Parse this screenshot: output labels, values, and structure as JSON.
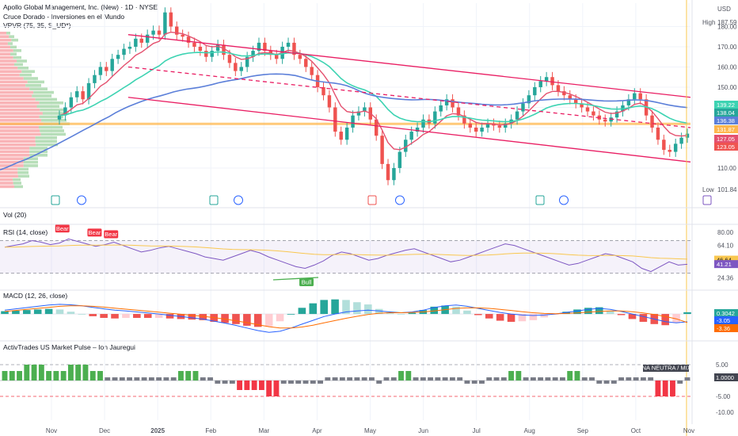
{
  "header": {
    "symbol_line": "Apollo Global Management, Inc. (New) · 1D · NYSE",
    "indicator_1": "Cruce Dorado - Inversiones en el Mundo",
    "indicator_2": "VPVR (75, 35, S_UD*)",
    "currency": "USD"
  },
  "colors": {
    "up": "#26a69a",
    "down": "#ef5350",
    "channel": "#e91e63",
    "ema_fast": "#e4516f",
    "ema_mid": "#3dd3b2",
    "ema_slow": "#5b7fd9",
    "support": "#ffb74d",
    "rsi": "#7e57c2",
    "macd": "#2962ff",
    "signal": "#ff6d00",
    "pulse_up": "#4caf50",
    "pulse_down": "#f23645",
    "pulse_neutral": "#787b86"
  },
  "chart_data": [
    {
      "type": "candlestick",
      "title": "Apollo Global Management, Inc. (New) · 1D · NYSE",
      "y_ticks": [
        110,
        120,
        130,
        140,
        150,
        160,
        170,
        180
      ],
      "ylim": [
        99,
        190
      ],
      "x_labels": [
        "Nov",
        "Dec",
        "2025",
        "Feb",
        "Mar",
        "Apr",
        "May",
        "Jun",
        "Jul",
        "Aug",
        "Sep",
        "Oct",
        "Nov"
      ],
      "high_label": "High",
      "high_value": "187.59",
      "low_label": "Low",
      "low_value": "101.84",
      "price_tags": [
        {
          "value": "139.22",
          "color": "#3dd3b2"
        },
        {
          "value": "138.04",
          "color": "#26a69a"
        },
        {
          "value": "136.38",
          "color": "#5b7fd9"
        },
        {
          "value": "131.87",
          "color": "#ffb74d"
        },
        {
          "value": "127.05",
          "color": "#e4516f"
        },
        {
          "value": "123.05",
          "color": "#ef5350"
        }
      ],
      "closes": [
        136,
        140,
        145,
        148,
        144,
        152,
        156,
        160,
        158,
        164,
        166,
        169,
        170,
        174,
        172,
        176,
        178,
        176,
        187,
        180,
        176,
        175,
        172,
        170,
        168,
        165,
        168,
        171,
        166,
        162,
        158,
        160,
        165,
        168,
        172,
        168,
        166,
        164,
        170,
        172,
        166,
        164,
        160,
        156,
        150,
        146,
        140,
        128,
        124,
        130,
        136,
        138,
        140,
        134,
        126,
        112,
        104,
        110,
        118,
        124,
        128,
        130,
        134,
        132,
        138,
        141,
        144,
        140,
        136,
        132,
        130,
        128,
        130,
        132,
        131,
        130,
        132,
        134,
        138,
        142,
        146,
        150,
        153,
        155,
        151,
        148,
        146,
        144,
        142,
        140,
        138,
        136,
        134,
        133,
        135,
        138,
        141,
        144,
        147,
        144,
        136,
        130,
        124,
        119,
        118,
        122,
        125,
        127
      ],
      "channel_upper": [
        [
          0.18,
          176
        ],
        [
          1.0,
          145
        ]
      ],
      "channel_mid": [
        [
          0.18,
          160
        ],
        [
          1.0,
          130
        ]
      ],
      "channel_lower": [
        [
          0.18,
          145
        ],
        [
          1.0,
          113
        ]
      ],
      "support_level": 131.87
    },
    {
      "type": "bar",
      "title": "Vol (20)"
    },
    {
      "type": "line",
      "title": "RSI (14, close)",
      "y_ticks": [
        80,
        64.1,
        46.64,
        41.21,
        24.36
      ],
      "tick_labels": [
        "80.00",
        "64.10",
        "46.64",
        "41.21",
        "24.36"
      ],
      "ylim": [
        20,
        85
      ],
      "band": [
        30,
        70
      ],
      "annotations": [
        {
          "label": "Bear",
          "x": 0.084,
          "value": 76
        },
        {
          "label": "Bear",
          "x": 0.131,
          "value": 71
        },
        {
          "label": "Bear",
          "x": 0.155,
          "value": 69
        },
        {
          "label": "Bull",
          "x": 0.44,
          "value": 27
        }
      ],
      "values": [
        62,
        64,
        66,
        70,
        68,
        65,
        67,
        72,
        69,
        66,
        63,
        65,
        68,
        64,
        60,
        56,
        58,
        61,
        63,
        60,
        57,
        54,
        50,
        48,
        46,
        50,
        54,
        58,
        55,
        50,
        46,
        42,
        38,
        36,
        40,
        45,
        52,
        56,
        54,
        50,
        46,
        48,
        52,
        55,
        58,
        60,
        56,
        52,
        48,
        44,
        46,
        50,
        54,
        58,
        62,
        66,
        64,
        60,
        56,
        52,
        48,
        44,
        40,
        42,
        46,
        50,
        54,
        52,
        48,
        44,
        36,
        32,
        38,
        44,
        40,
        41
      ]
    },
    {
      "type": "bar",
      "title": "MACD (12, 26, close)",
      "y_ticks": [
        0.3042,
        -3.05,
        -3.36
      ],
      "tick_labels": [
        "0.3042",
        "-3.05",
        "-3.36"
      ],
      "ylim": [
        -9,
        5
      ],
      "macd": [
        1.5,
        2,
        2.5,
        3,
        3.5,
        3.8,
        3.6,
        3.2,
        2.6,
        2,
        1.5,
        1.2,
        0.8,
        0.4,
        0,
        -0.5,
        -1,
        -1.5,
        -2,
        -2.8,
        -3.6,
        -4.5,
        -5.5,
        -6.5,
        -7.2,
        -6.8,
        -5.5,
        -4,
        -2.5,
        -1,
        0,
        0.8,
        1.2,
        1.5,
        1.2,
        0.8,
        0.5,
        0.8,
        1.5,
        2.5,
        3.2,
        3.5,
        3,
        2.2,
        1.4,
        0.6,
        0,
        -0.4,
        -0.6,
        -0.4,
        0,
        0.6,
        1.2,
        1.8,
        2.2,
        1.8,
        1,
        0,
        -1,
        -2,
        -3,
        -3.5,
        -3.05
      ],
      "signal": [
        1,
        1.4,
        1.8,
        2.2,
        2.6,
        3,
        3.2,
        3.2,
        3,
        2.7,
        2.3,
        1.9,
        1.5,
        1.1,
        0.7,
        0.3,
        -0.1,
        -0.5,
        -0.9,
        -1.4,
        -2,
        -2.7,
        -3.4,
        -4.2,
        -5,
        -5.5,
        -5.5,
        -5.1,
        -4.4,
        -3.5,
        -2.6,
        -1.7,
        -0.9,
        -0.2,
        0.3,
        0.5,
        0.5,
        0.6,
        0.8,
        1.2,
        1.7,
        2.2,
        2.4,
        2.4,
        2.2,
        1.8,
        1.4,
        0.9,
        0.5,
        0.2,
        0.1,
        0.2,
        0.4,
        0.7,
        1,
        1.2,
        1.2,
        0.9,
        0.4,
        -0.2,
        -1,
        -1.9,
        -3.36
      ]
    },
    {
      "type": "bar",
      "title": "ActivTrades US Market Pulse – Ion Jauregui",
      "y_ticks": [
        5,
        1,
        -5,
        -10
      ],
      "tick_labels": [
        "5.00",
        "1.0000",
        "-5.00",
        "-10.00"
      ],
      "ylim": [
        -12,
        8
      ],
      "zone_label": "ZONA NEUTRA / MIXTA",
      "values": [
        3,
        3,
        3,
        5,
        5,
        5,
        3,
        3,
        3,
        5,
        5,
        5,
        3,
        3,
        1,
        1,
        1,
        1,
        1,
        1,
        1,
        1,
        1,
        1,
        3,
        3,
        3,
        1,
        1,
        -1,
        -1,
        -1,
        -3,
        -3,
        -3,
        -3,
        -5,
        -5,
        -1,
        -1,
        -1,
        -1,
        -1,
        -1,
        1,
        1,
        1,
        1,
        1,
        1,
        1,
        -1,
        1,
        1,
        3,
        3,
        1,
        1,
        1,
        1,
        1,
        1,
        1,
        -1,
        -1,
        -1,
        1,
        1,
        1,
        3,
        3,
        1,
        1,
        1,
        1,
        1,
        1,
        3,
        3,
        1,
        1,
        -1,
        -1,
        -1,
        1,
        1,
        1,
        1,
        1,
        -5,
        -5,
        -5,
        -1,
        1
      ]
    }
  ]
}
